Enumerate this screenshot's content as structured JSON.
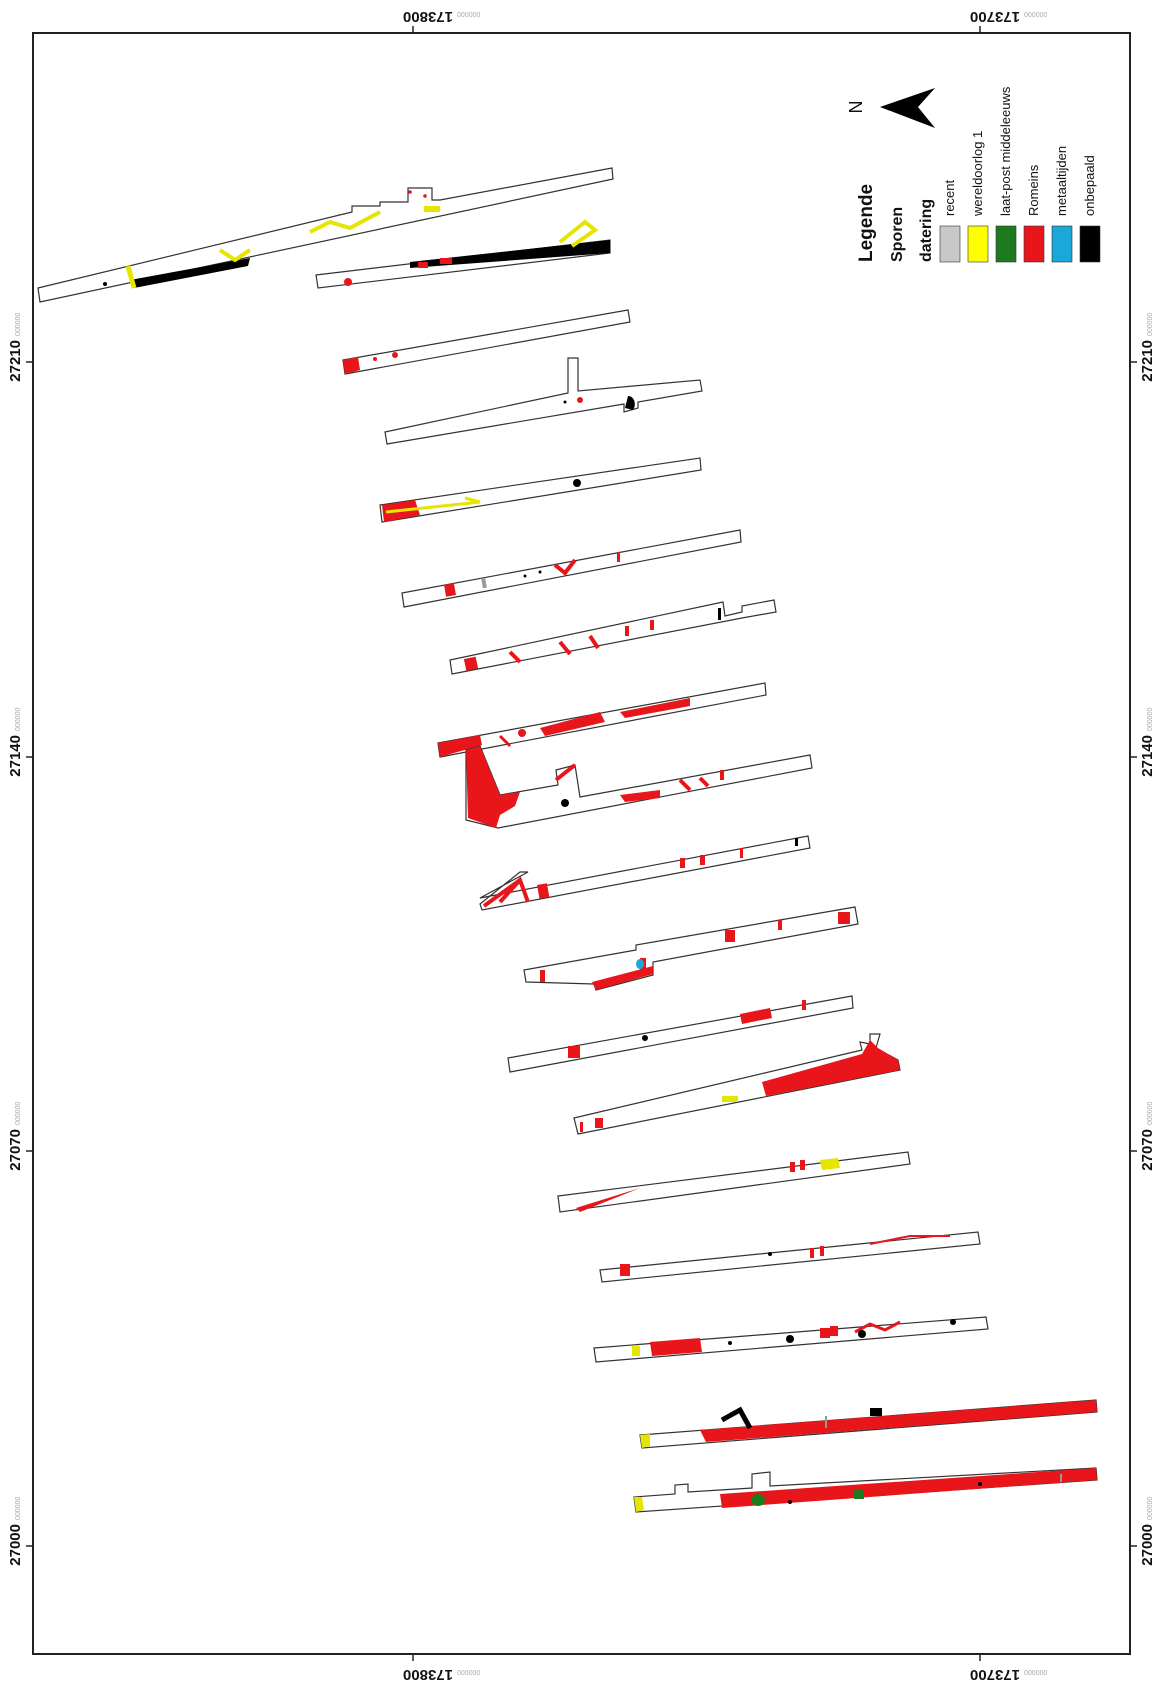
{
  "axes": {
    "top": [
      {
        "main": "173800",
        "sub": "000000"
      },
      {
        "main": "173700",
        "sub": "000000"
      }
    ],
    "bottom": [
      {
        "main": "173800",
        "sub": "000000"
      },
      {
        "main": "173700",
        "sub": "000000"
      }
    ],
    "left": [
      {
        "main": "27210",
        "sub": "000000"
      },
      {
        "main": "27140",
        "sub": "000000"
      },
      {
        "main": "27070",
        "sub": "000000"
      },
      {
        "main": "27000",
        "sub": "000000"
      }
    ],
    "right": [
      {
        "main": "27210",
        "sub": "000000"
      },
      {
        "main": "27140",
        "sub": "000000"
      },
      {
        "main": "27070",
        "sub": "000000"
      },
      {
        "main": "27000",
        "sub": "000000"
      }
    ]
  },
  "north": {
    "label": "N"
  },
  "legend": {
    "title": "Legende",
    "subtitle": "Sporen",
    "group": "datering",
    "items": [
      {
        "label": "recent",
        "color": "#c8c8c8"
      },
      {
        "label": "wereldoorlog 1",
        "color": "#ffff00"
      },
      {
        "label": "laat-post middeleeuws",
        "color": "#1e7a1e"
      },
      {
        "label": "Romeins",
        "color": "#e8161b"
      },
      {
        "label": "metaaltijden",
        "color": "#1aa8d8"
      },
      {
        "label": "onbepaald",
        "color": "#000000"
      }
    ]
  }
}
